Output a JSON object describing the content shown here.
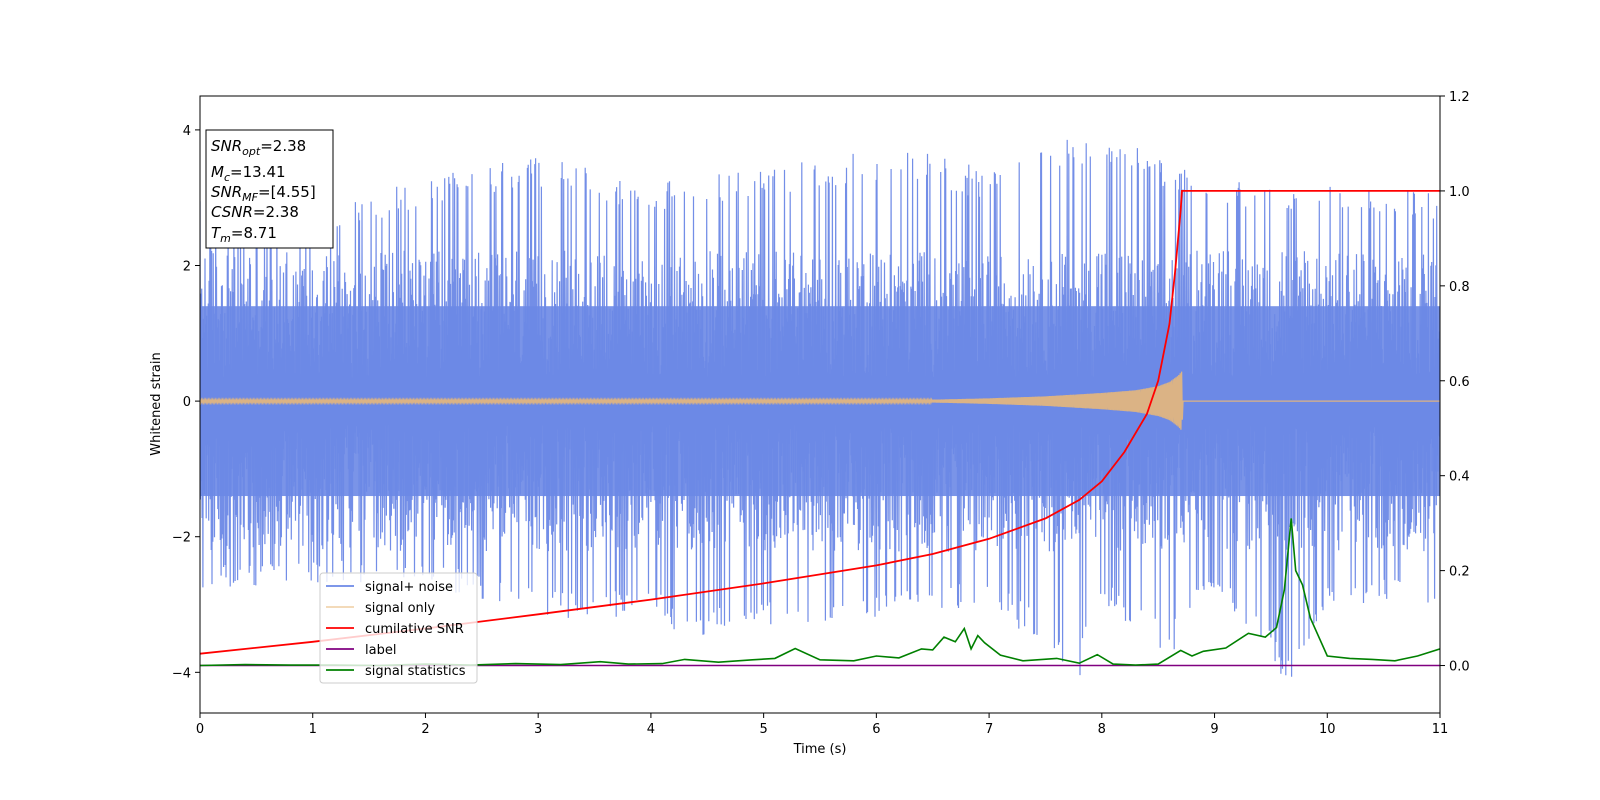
{
  "chart_data": {
    "type": "line",
    "title": "",
    "xlabel": "Time (s)",
    "ylabel": "Whitened strain",
    "y2label": "",
    "xlim": [
      0,
      11
    ],
    "ylim": [
      -4.6,
      4.5
    ],
    "y2lim": [
      -0.1,
      1.2
    ],
    "x_ticks": [
      "0",
      "1",
      "2",
      "3",
      "4",
      "5",
      "6",
      "7",
      "8",
      "9",
      "10",
      "11"
    ],
    "y_ticks": [
      "−4",
      "−2",
      "0",
      "2",
      "4"
    ],
    "y_tick_values": [
      -4,
      -2,
      0,
      2,
      4
    ],
    "y2_ticks": [
      "0.0",
      "0.2",
      "0.4",
      "0.6",
      "0.8",
      "1.0",
      "1.2"
    ],
    "y2_tick_values": [
      0.0,
      0.2,
      0.4,
      0.6,
      0.8,
      1.0,
      1.2
    ],
    "grid": false,
    "legend_position": "lower-left",
    "annotation": {
      "snr_opt": "2.38",
      "mc": "13.41",
      "snr_mf": "[4.55]",
      "csnr": "2.38",
      "tm": "8.71"
    },
    "series": [
      {
        "name": "signal+ noise",
        "axis": "left",
        "color": "#6b88e6",
        "envelope_min": [
          [
            0,
            -2.8
          ],
          [
            1,
            -2.7
          ],
          [
            2,
            -2.7
          ],
          [
            3,
            -3.2
          ],
          [
            4,
            -3.2
          ],
          [
            4.3,
            -3.5
          ],
          [
            5,
            -3.3
          ],
          [
            6,
            -3.2
          ],
          [
            7,
            -3.0
          ],
          [
            7.8,
            -4.1
          ],
          [
            8,
            -3.0
          ],
          [
            8.6,
            -3.8
          ],
          [
            9,
            -2.8
          ],
          [
            9.65,
            -4.2
          ],
          [
            10,
            -3.0
          ],
          [
            11,
            -3.0
          ]
        ],
        "envelope_max": [
          [
            0,
            3.1
          ],
          [
            1,
            2.8
          ],
          [
            2,
            3.3
          ],
          [
            2.9,
            3.6
          ],
          [
            3.4,
            3.5
          ],
          [
            4,
            3.2
          ],
          [
            5,
            3.5
          ],
          [
            6.3,
            3.8
          ],
          [
            7,
            3.4
          ],
          [
            8,
            4.1
          ],
          [
            9,
            3.2
          ],
          [
            9.4,
            3.3
          ],
          [
            10,
            3.2
          ],
          [
            11,
            3.1
          ]
        ]
      },
      {
        "name": "signal only",
        "axis": "left",
        "color": "#e8b87a",
        "envelope": [
          [
            0,
            0.02
          ],
          [
            6.5,
            0.02
          ],
          [
            7,
            0.04
          ],
          [
            7.5,
            0.07
          ],
          [
            8,
            0.12
          ],
          [
            8.3,
            0.16
          ],
          [
            8.5,
            0.22
          ],
          [
            8.6,
            0.28
          ],
          [
            8.68,
            0.38
          ],
          [
            8.71,
            0.44
          ],
          [
            8.72,
            0
          ]
        ]
      },
      {
        "name": "cumilative SNR",
        "axis": "right",
        "color": "#ff0000",
        "x": [
          0,
          1,
          2,
          3,
          4,
          5,
          6,
          6.5,
          7,
          7.5,
          7.8,
          8.0,
          8.2,
          8.4,
          8.5,
          8.6,
          8.65,
          8.7,
          8.71,
          11
        ],
        "values": [
          0.025,
          0.05,
          0.078,
          0.108,
          0.139,
          0.173,
          0.211,
          0.235,
          0.267,
          0.31,
          0.349,
          0.388,
          0.45,
          0.53,
          0.6,
          0.72,
          0.83,
          0.96,
          1.0,
          1.0
        ]
      },
      {
        "name": "label",
        "axis": "right",
        "color": "#800080",
        "x": [
          0,
          11
        ],
        "values": [
          0,
          0
        ]
      },
      {
        "name": "signal statistics",
        "axis": "right",
        "color": "#008000",
        "x": [
          0,
          0.4,
          0.8,
          1.2,
          1.6,
          2.0,
          2.4,
          2.8,
          3.2,
          3.55,
          3.8,
          4.1,
          4.3,
          4.6,
          4.9,
          5.1,
          5.28,
          5.5,
          5.8,
          6.0,
          6.2,
          6.4,
          6.5,
          6.6,
          6.7,
          6.78,
          6.84,
          6.9,
          6.96,
          7.1,
          7.3,
          7.6,
          7.8,
          7.96,
          8.1,
          8.3,
          8.5,
          8.7,
          8.8,
          8.9,
          9.1,
          9.3,
          9.45,
          9.55,
          9.62,
          9.68,
          9.72,
          9.78,
          9.85,
          10.0,
          10.2,
          10.4,
          10.6,
          10.8,
          11.0
        ],
        "values": [
          0.0,
          0.002,
          0.001,
          0.001,
          0.0,
          0.003,
          0.001,
          0.004,
          0.002,
          0.008,
          0.003,
          0.004,
          0.013,
          0.007,
          0.012,
          0.015,
          0.036,
          0.012,
          0.01,
          0.02,
          0.016,
          0.035,
          0.033,
          0.06,
          0.05,
          0.078,
          0.035,
          0.063,
          0.048,
          0.022,
          0.01,
          0.015,
          0.005,
          0.023,
          0.003,
          0.001,
          0.003,
          0.032,
          0.02,
          0.03,
          0.037,
          0.068,
          0.06,
          0.08,
          0.16,
          0.31,
          0.2,
          0.17,
          0.1,
          0.02,
          0.015,
          0.013,
          0.01,
          0.02,
          0.035
        ]
      }
    ]
  }
}
